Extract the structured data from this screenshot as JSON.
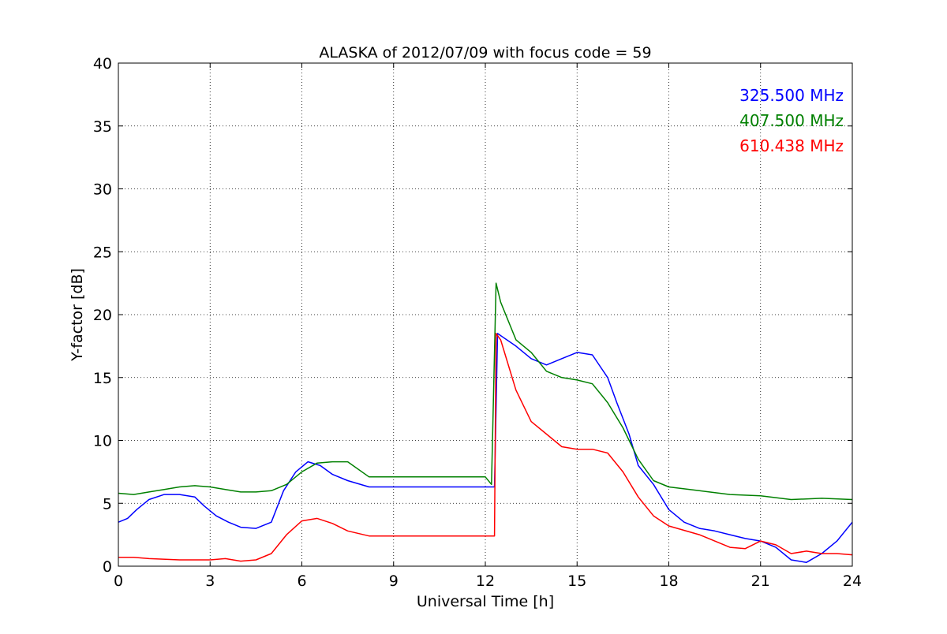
{
  "chart_data": {
    "type": "line",
    "title": "ALASKA of 2012/07/09 with focus code = 59",
    "xlabel": "Universal Time [h]",
    "ylabel": "Y-factor [dB]",
    "xlim": [
      0,
      24
    ],
    "ylim": [
      0,
      40
    ],
    "xticks": [
      0,
      3,
      6,
      9,
      12,
      15,
      18,
      21,
      24
    ],
    "yticks": [
      0,
      5,
      10,
      15,
      20,
      25,
      30,
      35,
      40
    ],
    "grid": true,
    "legend_position": "top-right",
    "series": [
      {
        "name": "325.500 MHz",
        "color": "#0000ff",
        "x": [
          0,
          0.3,
          0.6,
          1.0,
          1.5,
          2.0,
          2.5,
          2.8,
          3.2,
          3.6,
          4.0,
          4.5,
          5.0,
          5.4,
          5.8,
          6.2,
          6.6,
          7.0,
          7.5,
          8.2,
          12.2,
          12.3,
          12.4,
          13.0,
          13.5,
          14.0,
          14.5,
          15.0,
          15.5,
          16.0,
          16.3,
          16.7,
          17.0,
          17.5,
          18.0,
          18.5,
          19.0,
          19.5,
          20.0,
          20.5,
          21.0,
          21.5,
          22.0,
          22.5,
          23.0,
          23.5,
          24.0
        ],
        "values": [
          3.5,
          3.8,
          4.5,
          5.3,
          5.7,
          5.7,
          5.5,
          4.8,
          4.0,
          3.5,
          3.1,
          3.0,
          3.5,
          6.0,
          7.5,
          8.3,
          8.0,
          7.3,
          6.8,
          6.3,
          6.3,
          6.3,
          18.5,
          17.5,
          16.5,
          16.0,
          16.5,
          17.0,
          16.8,
          15.0,
          13.0,
          10.5,
          8.0,
          6.5,
          4.5,
          3.5,
          3.0,
          2.8,
          2.5,
          2.2,
          2.0,
          1.5,
          0.5,
          0.3,
          1.0,
          2.0,
          3.5
        ]
      },
      {
        "name": "407.500 MHz",
        "color": "#008000",
        "x": [
          0,
          0.5,
          1.0,
          1.5,
          2.0,
          2.5,
          3.0,
          3.5,
          4.0,
          4.5,
          5.0,
          5.5,
          6.0,
          6.5,
          7.0,
          7.5,
          8.2,
          12.0,
          12.2,
          12.35,
          12.5,
          13.0,
          13.5,
          14.0,
          14.5,
          15.0,
          15.5,
          16.0,
          16.5,
          17.0,
          17.5,
          18.0,
          19.0,
          20.0,
          21.0,
          22.0,
          23.0,
          24.0
        ],
        "values": [
          5.8,
          5.7,
          5.9,
          6.1,
          6.3,
          6.4,
          6.3,
          6.1,
          5.9,
          5.9,
          6.0,
          6.5,
          7.5,
          8.2,
          8.3,
          8.3,
          7.1,
          7.1,
          6.5,
          22.5,
          21.0,
          18.0,
          17.0,
          15.5,
          15.0,
          14.8,
          14.5,
          13.0,
          11.0,
          8.5,
          6.8,
          6.3,
          6.0,
          5.7,
          5.6,
          5.3,
          5.4,
          5.3
        ]
      },
      {
        "name": "610.438 MHz",
        "color": "#ff0000",
        "x": [
          0,
          0.5,
          1.0,
          2.0,
          3.0,
          3.5,
          4.0,
          4.5,
          5.0,
          5.5,
          6.0,
          6.5,
          7.0,
          7.5,
          8.2,
          12.2,
          12.3,
          12.35,
          12.5,
          13.0,
          13.5,
          14.0,
          14.5,
          15.0,
          15.5,
          16.0,
          16.5,
          17.0,
          17.5,
          18.0,
          19.0,
          20.0,
          20.5,
          21.0,
          21.5,
          22.0,
          22.5,
          23.0,
          23.5,
          24.0
        ],
        "values": [
          0.7,
          0.7,
          0.6,
          0.5,
          0.5,
          0.6,
          0.4,
          0.5,
          1.0,
          2.5,
          3.6,
          3.8,
          3.4,
          2.8,
          2.4,
          2.4,
          2.4,
          18.5,
          18.0,
          14.0,
          11.5,
          10.5,
          9.5,
          9.3,
          9.3,
          9.0,
          7.5,
          5.5,
          4.0,
          3.2,
          2.5,
          1.5,
          1.4,
          2.0,
          1.7,
          1.0,
          1.2,
          1.0,
          1.0,
          0.9
        ]
      }
    ]
  }
}
